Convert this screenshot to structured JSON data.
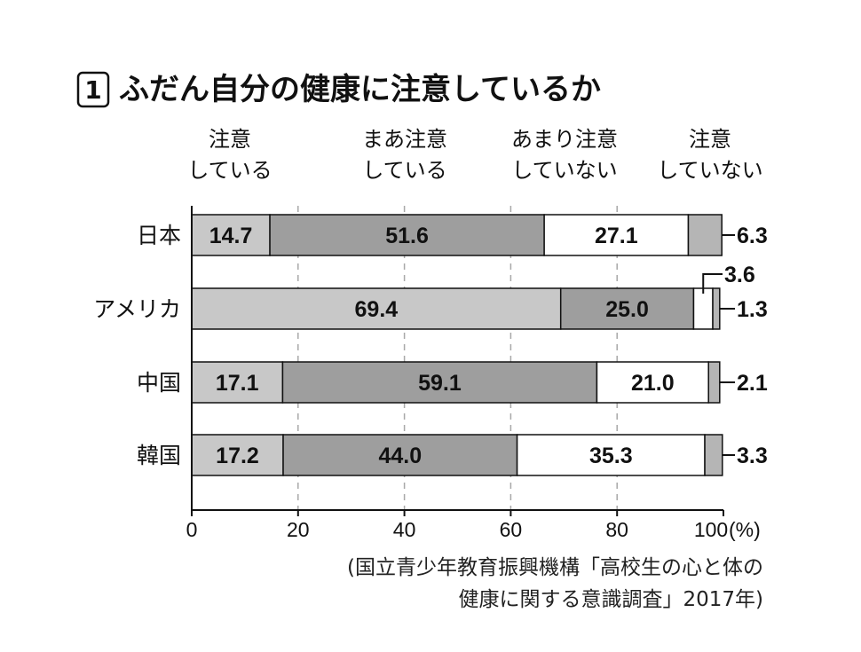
{
  "title_number": "1",
  "title": "ふだん自分の健康に注意しているか",
  "legend": [
    {
      "line1": "注意",
      "line2": "している"
    },
    {
      "line1": "まあ注意",
      "line2": "している"
    },
    {
      "line1": "あまり注意",
      "line2": "していない"
    },
    {
      "line1": "注意",
      "line2": "していない"
    }
  ],
  "x_unit": "(%)",
  "source_line1": "(国立青少年教育振興機構「高校生の心と体の",
  "source_line2": "健康に関する意識調査」2017年)",
  "colors": {
    "s1": "#c8c8c8",
    "s2": "#9e9e9e",
    "s3": "#ffffff",
    "s4": "#b5b5b5"
  },
  "chart_data": {
    "type": "bar",
    "orientation": "horizontal",
    "stacked": true,
    "categories": [
      "日本",
      "アメリカ",
      "中国",
      "韓国"
    ],
    "series": [
      {
        "name": "注意している",
        "values": [
          14.7,
          69.4,
          17.1,
          17.2
        ]
      },
      {
        "name": "まあ注意している",
        "values": [
          51.6,
          25.0,
          59.1,
          44.0
        ]
      },
      {
        "name": "あまり注意していない",
        "values": [
          27.1,
          3.6,
          21.0,
          35.3
        ]
      },
      {
        "name": "注意していない",
        "values": [
          6.3,
          1.3,
          2.1,
          3.3
        ]
      }
    ],
    "labels": [
      [
        "14.7",
        "51.6",
        "27.1",
        "6.3"
      ],
      [
        "69.4",
        "25.0",
        "3.6",
        "1.3"
      ],
      [
        "17.1",
        "59.1",
        "21.0",
        "2.1"
      ],
      [
        "17.2",
        "44.0",
        "35.3",
        "3.3"
      ]
    ],
    "xlim": [
      0,
      100
    ],
    "xticks": [
      "0",
      "20",
      "40",
      "60",
      "80",
      "100"
    ],
    "grid": true,
    "legend_position": "top"
  }
}
